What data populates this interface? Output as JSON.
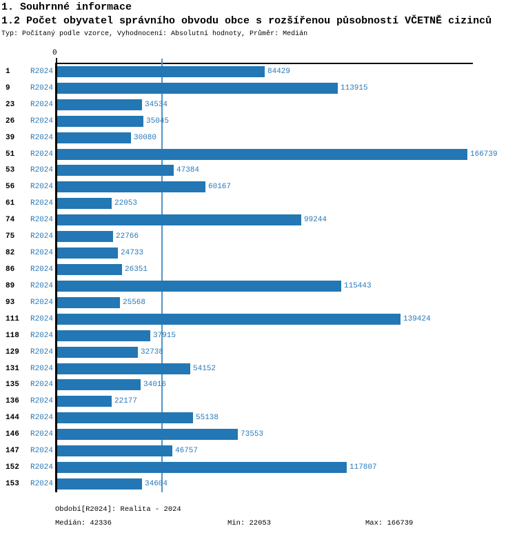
{
  "header": {
    "section_title": "1. Souhrnné informace",
    "chart_title": "1.2 Počet obyvatel správního obvodu obce s rozšířenou působností VČETNĚ cizinců",
    "subtitle": "Typ: Počítaný podle vzorce, Vyhodnocení: Absolutní hodnoty, Průměr: Medián"
  },
  "chart_data": {
    "type": "bar",
    "orientation": "horizontal",
    "title": "1.2 Počet obyvatel správního obvodu obce s rozšířenou působností VČETNĚ cizinců",
    "categories": [
      "1",
      "9",
      "23",
      "26",
      "39",
      "51",
      "53",
      "56",
      "61",
      "74",
      "75",
      "82",
      "86",
      "89",
      "93",
      "111",
      "118",
      "129",
      "131",
      "135",
      "136",
      "144",
      "146",
      "147",
      "152",
      "153"
    ],
    "series": [
      {
        "name": "R2024",
        "values": [
          84429,
          113915,
          34534,
          35045,
          30080,
          166739,
          47384,
          60167,
          22053,
          99244,
          22766,
          24733,
          26351,
          115443,
          25568,
          139424,
          37915,
          32738,
          54152,
          34016,
          22177,
          55138,
          73553,
          46757,
          117807,
          34604
        ]
      }
    ],
    "row_series_tag": "R2024",
    "xlim": [
      0,
      166739
    ],
    "x_origin_tick_label": "0",
    "median_value": 42336,
    "min_value": 22053,
    "max_value": 166739,
    "grid": false,
    "legend_position": "none",
    "value_labels": "end-of-bar",
    "colors": {
      "bar": "#2277b4",
      "text_blue": "#2878b8",
      "median_line": "#4f94c8",
      "axis": "#000000"
    }
  },
  "footer": {
    "period": "Období[R2024]: Realita - 2024",
    "median": "Medián: 42336",
    "min": "Min: 22053",
    "max": "Max: 166739"
  }
}
